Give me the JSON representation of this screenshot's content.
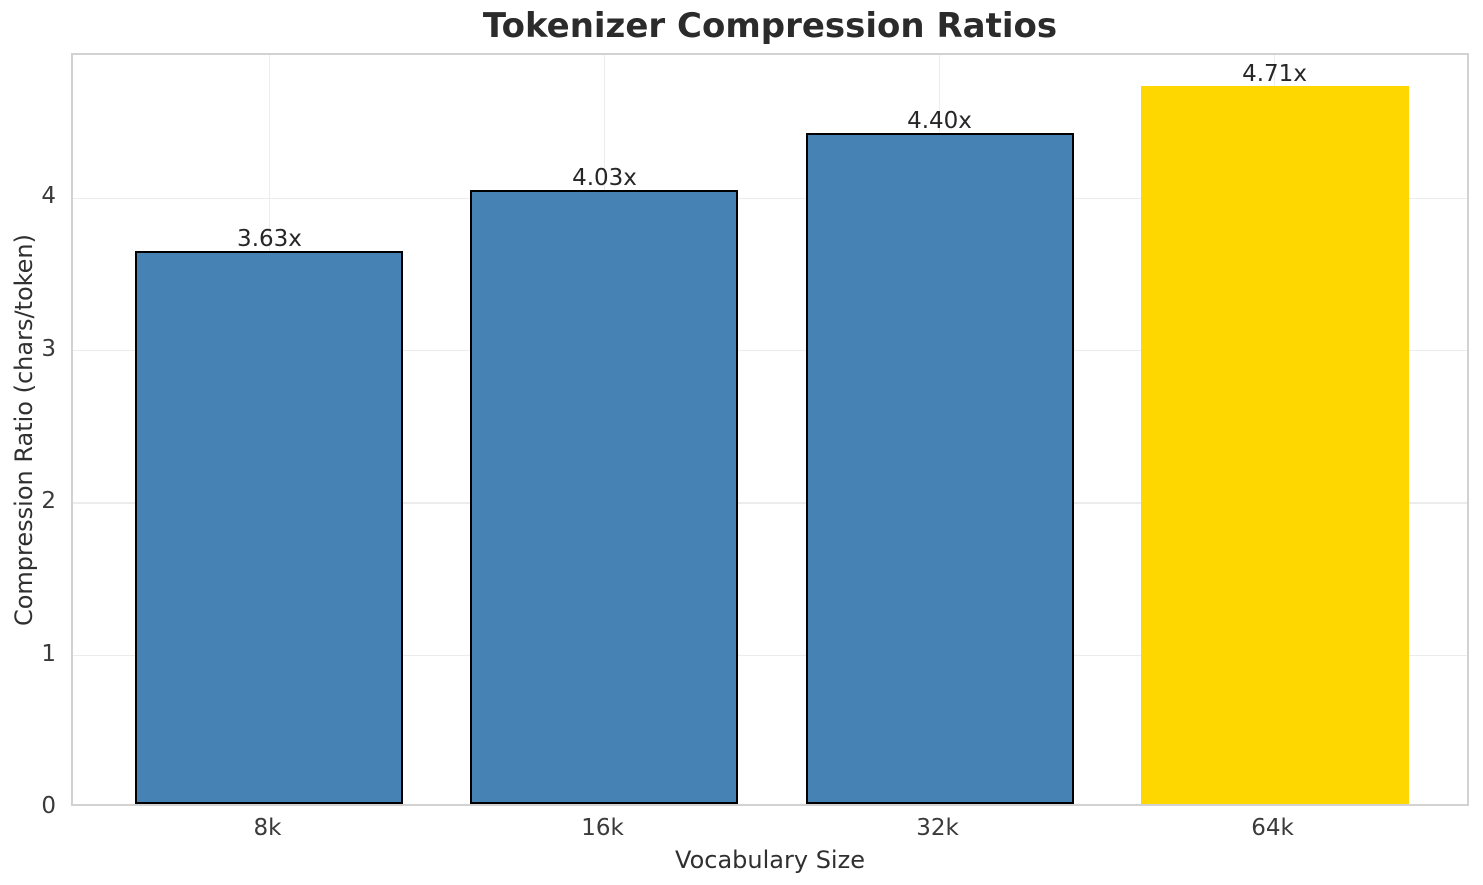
{
  "chart_data": {
    "type": "bar",
    "title": "Tokenizer Compression Ratios",
    "xlabel": "Vocabulary Size",
    "ylabel": "Compression Ratio (chars/token)",
    "categories": [
      "8k",
      "16k",
      "32k",
      "64k"
    ],
    "values": [
      3.63,
      4.03,
      4.4,
      4.71
    ],
    "bar_labels": [
      "3.63x",
      "4.03x",
      "4.40x",
      "4.71x"
    ],
    "bar_colors": [
      "#4682B4",
      "#4682B4",
      "#4682B4",
      "#FFD700"
    ],
    "bar_edge_colors": [
      "#000000",
      "#000000",
      "#000000",
      "none"
    ],
    "yticks": [
      "0",
      "1",
      "2",
      "3",
      "4"
    ],
    "ylim": [
      0,
      4.94
    ],
    "grid": "both",
    "legend_position": "none",
    "colors": {
      "bar_default": "#4682B4",
      "bar_highlight": "#FFD700",
      "bar_edge": "#000000",
      "grid": "#ececec",
      "spine": "#d2d2d2",
      "text": "#262626",
      "title": "#2b2b2b"
    }
  }
}
